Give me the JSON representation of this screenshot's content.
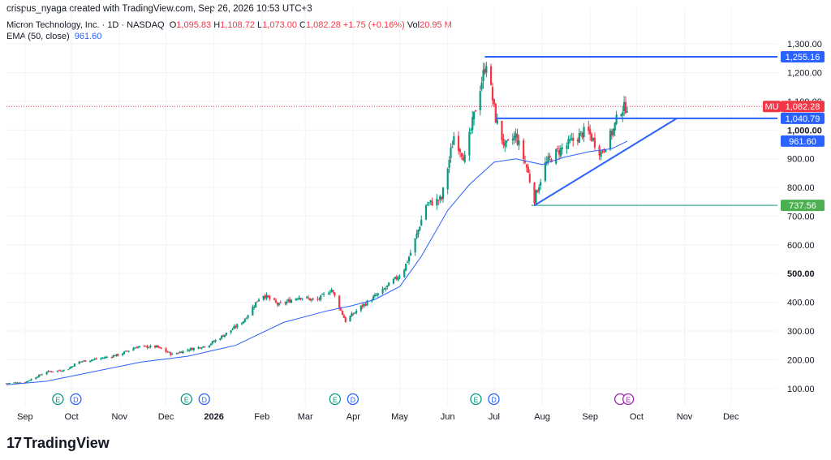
{
  "attribution": "crispus_nyaga created with TradingView.com, Sep 26, 2026 10:53 UTC+3",
  "legend": {
    "symbol_line": "Micron Technology, Inc. · 1D · NASDAQ",
    "o_label": "O",
    "o_value": "1,095.83",
    "h_label": "H",
    "h_value": "1,108.72",
    "l_label": "L",
    "l_value": "1,073.00",
    "c_label": "C",
    "c_value": "1,082.28",
    "change": "+1.75 (+0.16%)",
    "vol_label": "Vol",
    "vol_value": "20.95 M",
    "ema_label": "EMA (50, close)",
    "ema_value": "961.60"
  },
  "logo_text": "TradingView",
  "colors": {
    "up": "#089981",
    "down": "#f23645",
    "ema": "#2962ff",
    "line": "#2962ff",
    "support": "#089981",
    "grid": "#f0f3fa"
  },
  "event_markers": {
    "E": "E",
    "D": "D",
    "special": "E",
    "x_dates": [
      "2025-09-28",
      "2025-12-20",
      "2026-03-26",
      "2026-06-25"
    ],
    "special_x": "2026-09-23"
  },
  "chart_data": {
    "type": "candlestick",
    "title": "Micron Technology, Inc. · 1D · NASDAQ",
    "symbol": "MU",
    "x_range": [
      "2025-08-20",
      "2026-12-31"
    ],
    "ylim": [
      40,
      1340
    ],
    "y_ticks": [
      "100.00",
      "200.00",
      "300.00",
      "400.00",
      "500.00",
      "600.00",
      "700.00",
      "800.00",
      "900.00",
      "1,000.00",
      "1,100.00",
      "1,200.00",
      "1,300.00"
    ],
    "y_tick_values": [
      100,
      200,
      300,
      400,
      500,
      600,
      700,
      800,
      900,
      1000,
      1100,
      1200,
      1300
    ],
    "x_ticks": [
      {
        "label": "Sep",
        "date": "2025-09-01"
      },
      {
        "label": "Oct",
        "date": "2025-10-01"
      },
      {
        "label": "Nov",
        "date": "2025-11-01"
      },
      {
        "label": "Dec",
        "date": "2025-12-01"
      },
      {
        "label": "2026",
        "date": "2026-01-01"
      },
      {
        "label": "Feb",
        "date": "2026-02-01"
      },
      {
        "label": "Mar",
        "date": "2026-03-01"
      },
      {
        "label": "Apr",
        "date": "2026-04-01"
      },
      {
        "label": "May",
        "date": "2026-05-01"
      },
      {
        "label": "Jun",
        "date": "2026-06-01"
      },
      {
        "label": "Jul",
        "date": "2026-07-01"
      },
      {
        "label": "Aug",
        "date": "2026-08-01"
      },
      {
        "label": "Sep",
        "date": "2026-09-01"
      },
      {
        "label": "Oct",
        "date": "2026-10-01"
      },
      {
        "label": "Nov",
        "date": "2026-11-01"
      },
      {
        "label": "Dec",
        "date": "2026-12-01"
      }
    ],
    "close_path": [
      [
        "2025-08-20",
        118
      ],
      [
        "2025-09-01",
        122
      ],
      [
        "2025-09-15",
        158
      ],
      [
        "2025-09-28",
        165
      ],
      [
        "2025-10-05",
        192
      ],
      [
        "2025-10-20",
        205
      ],
      [
        "2025-11-01",
        218
      ],
      [
        "2025-11-12",
        245
      ],
      [
        "2025-11-25",
        245
      ],
      [
        "2025-12-05",
        218
      ],
      [
        "2025-12-15",
        235
      ],
      [
        "2025-12-28",
        250
      ],
      [
        "2026-01-10",
        295
      ],
      [
        "2026-01-20",
        335
      ],
      [
        "2026-02-01",
        430
      ],
      [
        "2026-02-12",
        390
      ],
      [
        "2026-02-25",
        420
      ],
      [
        "2026-03-08",
        405
      ],
      [
        "2026-03-18",
        445
      ],
      [
        "2026-03-27",
        335
      ],
      [
        "2026-04-05",
        380
      ],
      [
        "2026-04-20",
        440
      ],
      [
        "2026-05-03",
        505
      ],
      [
        "2026-05-10",
        600
      ],
      [
        "2026-05-18",
        740
      ],
      [
        "2026-05-28",
        760
      ],
      [
        "2026-06-05",
        980
      ],
      [
        "2026-06-12",
        900
      ],
      [
        "2026-06-22",
        1150
      ],
      [
        "2026-06-26",
        1240
      ],
      [
        "2026-07-02",
        1040
      ],
      [
        "2026-07-08",
        940
      ],
      [
        "2026-07-15",
        980
      ],
      [
        "2026-07-22",
        870
      ],
      [
        "2026-07-27",
        760
      ],
      [
        "2026-08-03",
        880
      ],
      [
        "2026-08-10",
        920
      ],
      [
        "2026-08-20",
        960
      ],
      [
        "2026-08-30",
        1000
      ],
      [
        "2026-09-08",
        920
      ],
      [
        "2026-09-16",
        1000
      ],
      [
        "2026-09-20",
        1070
      ],
      [
        "2026-09-25",
        1082
      ]
    ],
    "ema_path": [
      [
        "2025-08-20",
        113
      ],
      [
        "2025-09-15",
        125
      ],
      [
        "2025-10-15",
        158
      ],
      [
        "2025-11-15",
        192
      ],
      [
        "2025-12-15",
        212
      ],
      [
        "2026-01-15",
        250
      ],
      [
        "2026-02-15",
        330
      ],
      [
        "2026-03-15",
        370
      ],
      [
        "2026-03-31",
        388
      ],
      [
        "2026-04-15",
        410
      ],
      [
        "2026-05-01",
        455
      ],
      [
        "2026-05-15",
        560
      ],
      [
        "2026-06-01",
        720
      ],
      [
        "2026-06-15",
        810
      ],
      [
        "2026-07-01",
        888
      ],
      [
        "2026-07-15",
        900
      ],
      [
        "2026-08-01",
        880
      ],
      [
        "2026-08-15",
        905
      ],
      [
        "2026-09-01",
        925
      ],
      [
        "2026-09-15",
        935
      ],
      [
        "2026-09-25",
        961.6
      ]
    ],
    "ema_name": "EMA (50, close)",
    "price_labels": [
      {
        "kind": "resistance",
        "value": 1255.16,
        "text": "1,255.16"
      },
      {
        "kind": "last",
        "value": 1082.28,
        "text": "1,082.28",
        "symbol": "MU"
      },
      {
        "kind": "neckline",
        "value": 1040.79,
        "text": "1,040.79"
      },
      {
        "kind": "ema",
        "value": 961.6,
        "text": "961.60"
      },
      {
        "kind": "support",
        "value": 737.56,
        "text": "737.56"
      }
    ],
    "drawings": [
      {
        "kind": "horizontal",
        "from": "2026-06-25",
        "to": "2026-12-31",
        "y": 1255.16
      },
      {
        "kind": "horizontal",
        "from": "2026-07-02",
        "to": "2026-12-31",
        "y": 1040.79
      },
      {
        "kind": "horizontal",
        "from": "2026-07-25",
        "to": "2026-12-31",
        "y": 737.56
      },
      {
        "kind": "trend",
        "x1": "2026-07-27",
        "y1": 737.56,
        "x2": "2026-10-27",
        "y2": 1040.79
      }
    ]
  }
}
